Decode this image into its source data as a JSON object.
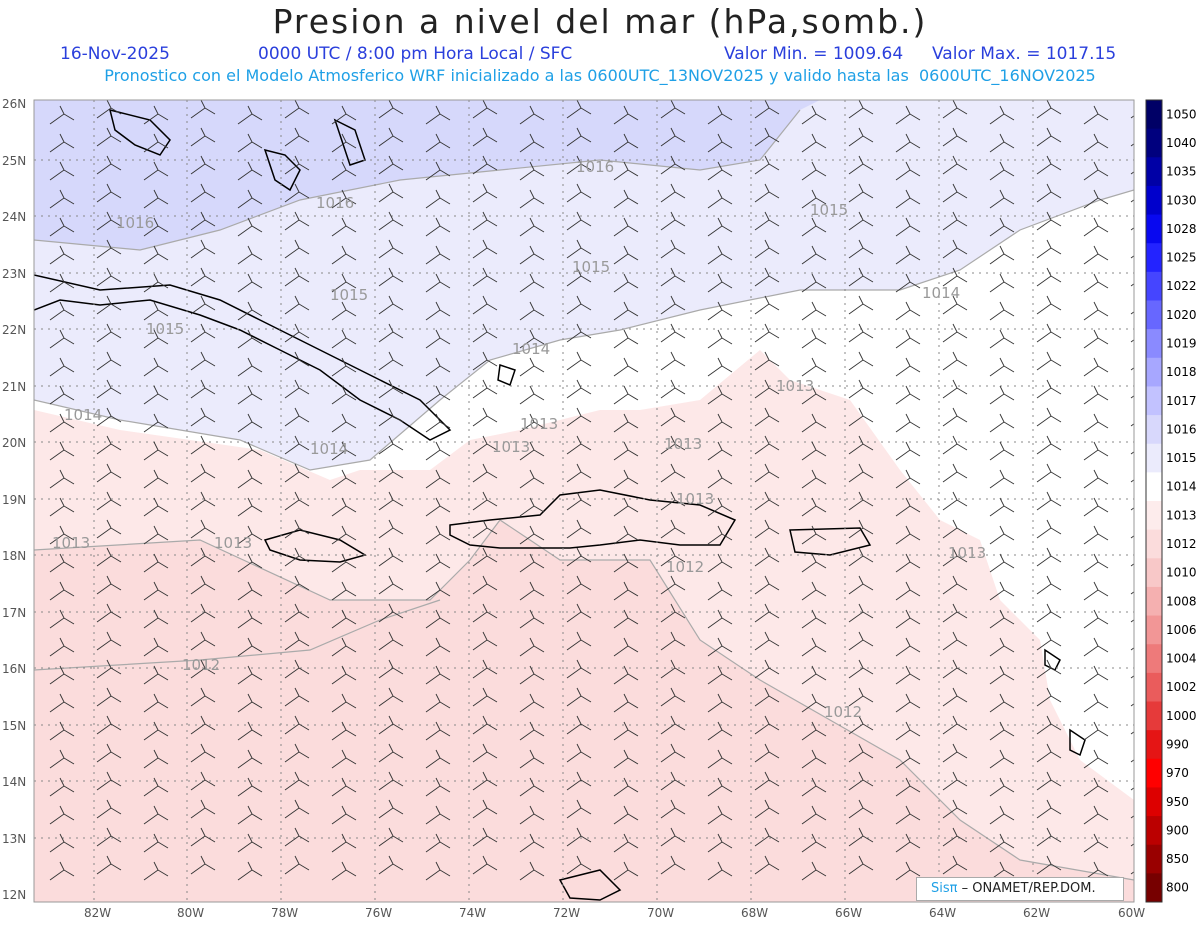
{
  "header": {
    "title": "Presion a nivel del mar (hPa,somb.)",
    "date": "16-Nov-2025",
    "time_line": "0000 UTC / 8:00 pm Hora Local / SFC",
    "min_label": "Valor Min. = 1009.64",
    "max_label": "Valor Max. = 1017.15",
    "model_line": "Pronostico con el Modelo Atmosferico WRF inicializado a las 0600UTC_13NOV2025 y valido hasta las  0600UTC_16NOV2025"
  },
  "map": {
    "lat_labels": [
      "26N",
      "25N",
      "24N",
      "23N",
      "22N",
      "21N",
      "20N",
      "19N",
      "18N",
      "17N",
      "16N",
      "15N",
      "14N",
      "13N",
      "12N"
    ],
    "lon_labels": [
      "82W",
      "80W",
      "78W",
      "76W",
      "74W",
      "72W",
      "70W",
      "68W",
      "66W",
      "64W",
      "62W",
      "60W"
    ],
    "isobar_labels": [
      "1016",
      "1016",
      "1016",
      "1015",
      "1015",
      "1015",
      "1015",
      "1014",
      "1014",
      "1014",
      "1014",
      "1013",
      "1013",
      "1013",
      "1013",
      "1013",
      "1013",
      "1013",
      "1012",
      "1012",
      "1012",
      "1013"
    ],
    "colors": {
      "ocean_high": "#d6d8fb",
      "mid_blue": "#ebebfc",
      "neutral": "#ffffff",
      "pink": "#fde8e8",
      "pink2": "#fbdcdc"
    }
  },
  "colorbar": {
    "levels": [
      "1050",
      "1040",
      "1035",
      "1030",
      "1028",
      "1025",
      "1022",
      "1020",
      "1019",
      "1018",
      "1017",
      "1016",
      "1015",
      "1014",
      "1013",
      "1012",
      "1010",
      "1008",
      "1006",
      "1004",
      "1002",
      "1000",
      "990",
      "970",
      "950",
      "900",
      "850",
      "800"
    ],
    "colors": [
      "#000066",
      "#00007e",
      "#0000a6",
      "#0000cc",
      "#0808f0",
      "#2323ff",
      "#4545ff",
      "#6767ff",
      "#8a8aff",
      "#a7a7ff",
      "#c2c2ff",
      "#d8d8fc",
      "#ebebfc",
      "#ffffff",
      "#fdecec",
      "#fbdcdc",
      "#f8c8c8",
      "#f5b0b0",
      "#f29696",
      "#ee7a7a",
      "#ea5c5c",
      "#e63a3a",
      "#e51515",
      "#ff0000",
      "#dd0000",
      "#bb0000",
      "#990000",
      "#770000"
    ]
  },
  "credit": {
    "brand": "Sisπ",
    "org": "– ONAMET/REP.DOM."
  }
}
